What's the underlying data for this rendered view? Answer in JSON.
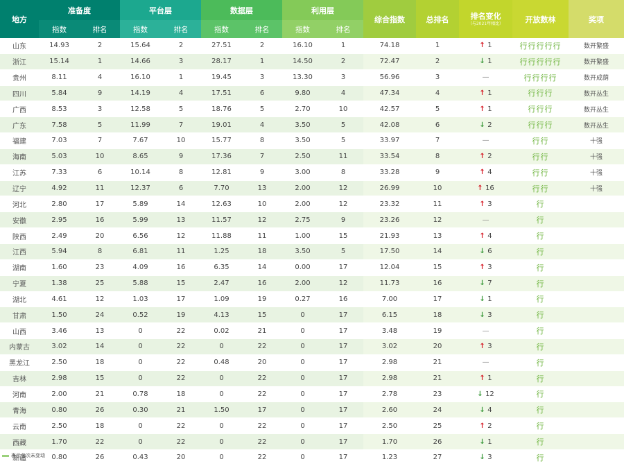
{
  "headers": {
    "region": "地方",
    "readiness": "准备度",
    "platform": "平台层",
    "data": "数据层",
    "usage": "利用层",
    "composite": "综合指数",
    "total_rank": "总排名",
    "rank_change": "排名变化",
    "rank_change_note": "（与2021年相比）",
    "open_level": "开放数林",
    "award": "奖项",
    "index": "指数",
    "rank": "排名"
  },
  "colors": {
    "readiness": "#00806e",
    "platform": "#1ca88f",
    "data": "#4cbb5a",
    "usage": "#84ca58",
    "composite": "#a0cc3f",
    "total_rank": "#b3d132",
    "rank_change": "#c2d62c",
    "open_level": "#c9d832",
    "award": "#d4dc6a",
    "region": "#00806e"
  },
  "rows": [
    {
      "region": "山东",
      "r_idx": "14.93",
      "r_rank": "2",
      "p_idx": "15.64",
      "p_rank": "2",
      "d_idx": "27.51",
      "d_rank": "2",
      "u_idx": "16.10",
      "u_rank": "1",
      "composite": "74.18",
      "total": "1",
      "change_dir": "up",
      "change": "1",
      "trees": "5",
      "award": "数开繁盛"
    },
    {
      "region": "浙江",
      "r_idx": "15.14",
      "r_rank": "1",
      "p_idx": "14.66",
      "p_rank": "3",
      "d_idx": "28.17",
      "d_rank": "1",
      "u_idx": "14.50",
      "u_rank": "2",
      "composite": "72.47",
      "total": "2",
      "change_dir": "down",
      "change": "1",
      "trees": "5",
      "award": "数开繁盛"
    },
    {
      "region": "贵州",
      "r_idx": "8.11",
      "r_rank": "4",
      "p_idx": "16.10",
      "p_rank": "1",
      "d_idx": "19.45",
      "d_rank": "3",
      "u_idx": "13.30",
      "u_rank": "3",
      "composite": "56.96",
      "total": "3",
      "change_dir": "flat",
      "change": "",
      "trees": "4",
      "award": "数开成荫"
    },
    {
      "region": "四川",
      "r_idx": "5.84",
      "r_rank": "9",
      "p_idx": "14.19",
      "p_rank": "4",
      "d_idx": "17.51",
      "d_rank": "6",
      "u_idx": "9.80",
      "u_rank": "4",
      "composite": "47.34",
      "total": "4",
      "change_dir": "up",
      "change": "1",
      "trees": "3",
      "award": "数开丛生"
    },
    {
      "region": "广西",
      "r_idx": "8.53",
      "r_rank": "3",
      "p_idx": "12.58",
      "p_rank": "5",
      "d_idx": "18.76",
      "d_rank": "5",
      "u_idx": "2.70",
      "u_rank": "10",
      "composite": "42.57",
      "total": "5",
      "change_dir": "up",
      "change": "1",
      "trees": "3",
      "award": "数开丛生"
    },
    {
      "region": "广东",
      "r_idx": "7.58",
      "r_rank": "5",
      "p_idx": "11.99",
      "p_rank": "7",
      "d_idx": "19.01",
      "d_rank": "4",
      "u_idx": "3.50",
      "u_rank": "5",
      "composite": "42.08",
      "total": "6",
      "change_dir": "down",
      "change": "2",
      "trees": "3",
      "award": "数开丛生"
    },
    {
      "region": "福建",
      "r_idx": "7.03",
      "r_rank": "7",
      "p_idx": "7.67",
      "p_rank": "10",
      "d_idx": "15.77",
      "d_rank": "8",
      "u_idx": "3.50",
      "u_rank": "5",
      "composite": "33.97",
      "total": "7",
      "change_dir": "flat",
      "change": "",
      "trees": "2",
      "award": "十强"
    },
    {
      "region": "海南",
      "r_idx": "5.03",
      "r_rank": "10",
      "p_idx": "8.65",
      "p_rank": "9",
      "d_idx": "17.36",
      "d_rank": "7",
      "u_idx": "2.50",
      "u_rank": "11",
      "composite": "33.54",
      "total": "8",
      "change_dir": "up",
      "change": "2",
      "trees": "2",
      "award": "十强"
    },
    {
      "region": "江苏",
      "r_idx": "7.33",
      "r_rank": "6",
      "p_idx": "10.14",
      "p_rank": "8",
      "d_idx": "12.81",
      "d_rank": "9",
      "u_idx": "3.00",
      "u_rank": "8",
      "composite": "33.28",
      "total": "9",
      "change_dir": "up",
      "change": "4",
      "trees": "2",
      "award": "十强"
    },
    {
      "region": "辽宁",
      "r_idx": "4.92",
      "r_rank": "11",
      "p_idx": "12.37",
      "p_rank": "6",
      "d_idx": "7.70",
      "d_rank": "13",
      "u_idx": "2.00",
      "u_rank": "12",
      "composite": "26.99",
      "total": "10",
      "change_dir": "up",
      "change": "16",
      "trees": "2",
      "award": "十强"
    },
    {
      "region": "河北",
      "r_idx": "2.80",
      "r_rank": "17",
      "p_idx": "5.89",
      "p_rank": "14",
      "d_idx": "12.63",
      "d_rank": "10",
      "u_idx": "2.00",
      "u_rank": "12",
      "composite": "23.32",
      "total": "11",
      "change_dir": "up",
      "change": "3",
      "trees": "1",
      "award": ""
    },
    {
      "region": "安徽",
      "r_idx": "2.95",
      "r_rank": "16",
      "p_idx": "5.99",
      "p_rank": "13",
      "d_idx": "11.57",
      "d_rank": "12",
      "u_idx": "2.75",
      "u_rank": "9",
      "composite": "23.26",
      "total": "12",
      "change_dir": "flat",
      "change": "",
      "trees": "1",
      "award": ""
    },
    {
      "region": "陕西",
      "r_idx": "2.49",
      "r_rank": "20",
      "p_idx": "6.56",
      "p_rank": "12",
      "d_idx": "11.88",
      "d_rank": "11",
      "u_idx": "1.00",
      "u_rank": "15",
      "composite": "21.93",
      "total": "13",
      "change_dir": "up",
      "change": "4",
      "trees": "1",
      "award": ""
    },
    {
      "region": "江西",
      "r_idx": "5.94",
      "r_rank": "8",
      "p_idx": "6.81",
      "p_rank": "11",
      "d_idx": "1.25",
      "d_rank": "18",
      "u_idx": "3.50",
      "u_rank": "5",
      "composite": "17.50",
      "total": "14",
      "change_dir": "down",
      "change": "6",
      "trees": "1",
      "award": ""
    },
    {
      "region": "湖南",
      "r_idx": "1.60",
      "r_rank": "23",
      "p_idx": "4.09",
      "p_rank": "16",
      "d_idx": "6.35",
      "d_rank": "14",
      "u_idx": "0.00",
      "u_rank": "17",
      "composite": "12.04",
      "total": "15",
      "change_dir": "up",
      "change": "3",
      "trees": "1",
      "award": ""
    },
    {
      "region": "宁夏",
      "r_idx": "1.38",
      "r_rank": "25",
      "p_idx": "5.88",
      "p_rank": "15",
      "d_idx": "2.47",
      "d_rank": "16",
      "u_idx": "2.00",
      "u_rank": "12",
      "composite": "11.73",
      "total": "16",
      "change_dir": "down",
      "change": "7",
      "trees": "1",
      "award": ""
    },
    {
      "region": "湖北",
      "r_idx": "4.61",
      "r_rank": "12",
      "p_idx": "1.03",
      "p_rank": "17",
      "d_idx": "1.09",
      "d_rank": "19",
      "u_idx": "0.27",
      "u_rank": "16",
      "composite": "7.00",
      "total": "17",
      "change_dir": "down",
      "change": "1",
      "trees": "1",
      "award": ""
    },
    {
      "region": "甘肃",
      "r_idx": "1.50",
      "r_rank": "24",
      "p_idx": "0.52",
      "p_rank": "19",
      "d_idx": "4.13",
      "d_rank": "15",
      "u_idx": "0",
      "u_rank": "17",
      "composite": "6.15",
      "total": "18",
      "change_dir": "down",
      "change": "3",
      "trees": "1",
      "award": ""
    },
    {
      "region": "山西",
      "r_idx": "3.46",
      "r_rank": "13",
      "p_idx": "0",
      "p_rank": "22",
      "d_idx": "0.02",
      "d_rank": "21",
      "u_idx": "0",
      "u_rank": "17",
      "composite": "3.48",
      "total": "19",
      "change_dir": "flat",
      "change": "",
      "trees": "1",
      "award": ""
    },
    {
      "region": "内蒙古",
      "r_idx": "3.02",
      "r_rank": "14",
      "p_idx": "0",
      "p_rank": "22",
      "d_idx": "0",
      "d_rank": "22",
      "u_idx": "0",
      "u_rank": "17",
      "composite": "3.02",
      "total": "20",
      "change_dir": "up",
      "change": "3",
      "trees": "1",
      "award": ""
    },
    {
      "region": "黑龙江",
      "r_idx": "2.50",
      "r_rank": "18",
      "p_idx": "0",
      "p_rank": "22",
      "d_idx": "0.48",
      "d_rank": "20",
      "u_idx": "0",
      "u_rank": "17",
      "composite": "2.98",
      "total": "21",
      "change_dir": "flat",
      "change": "",
      "trees": "1",
      "award": ""
    },
    {
      "region": "吉林",
      "r_idx": "2.98",
      "r_rank": "15",
      "p_idx": "0",
      "p_rank": "22",
      "d_idx": "0",
      "d_rank": "22",
      "u_idx": "0",
      "u_rank": "17",
      "composite": "2.98",
      "total": "21",
      "change_dir": "up",
      "change": "1",
      "trees": "1",
      "award": ""
    },
    {
      "region": "河南",
      "r_idx": "2.00",
      "r_rank": "21",
      "p_idx": "0.78",
      "p_rank": "18",
      "d_idx": "0",
      "d_rank": "22",
      "u_idx": "0",
      "u_rank": "17",
      "composite": "2.78",
      "total": "23",
      "change_dir": "down",
      "change": "12",
      "trees": "1",
      "award": ""
    },
    {
      "region": "青海",
      "r_idx": "0.80",
      "r_rank": "26",
      "p_idx": "0.30",
      "p_rank": "21",
      "d_idx": "1.50",
      "d_rank": "17",
      "u_idx": "0",
      "u_rank": "17",
      "composite": "2.60",
      "total": "24",
      "change_dir": "down",
      "change": "4",
      "trees": "1",
      "award": ""
    },
    {
      "region": "云南",
      "r_idx": "2.50",
      "r_rank": "18",
      "p_idx": "0",
      "p_rank": "22",
      "d_idx": "0",
      "d_rank": "22",
      "u_idx": "0",
      "u_rank": "17",
      "composite": "2.50",
      "total": "25",
      "change_dir": "up",
      "change": "2",
      "trees": "1",
      "award": ""
    },
    {
      "region": "西藏",
      "r_idx": "1.70",
      "r_rank": "22",
      "p_idx": "0",
      "p_rank": "22",
      "d_idx": "0",
      "d_rank": "22",
      "u_idx": "0",
      "u_rank": "17",
      "composite": "1.70",
      "total": "26",
      "change_dir": "down",
      "change": "1",
      "trees": "1",
      "award": ""
    },
    {
      "region": "新疆",
      "r_idx": "0.80",
      "r_rank": "26",
      "p_idx": "0.43",
      "p_rank": "20",
      "d_idx": "0",
      "d_rank": "22",
      "u_idx": "0",
      "u_rank": "17",
      "composite": "1.23",
      "total": "27",
      "change_dir": "down",
      "change": "3",
      "trees": "1",
      "award": ""
    }
  ],
  "legend": {
    "text": "表示名次未变动"
  },
  "icons": {
    "up": "arrow-up-icon",
    "down": "arrow-down-icon",
    "flat": "dash-icon",
    "tree": "tree-icon"
  }
}
